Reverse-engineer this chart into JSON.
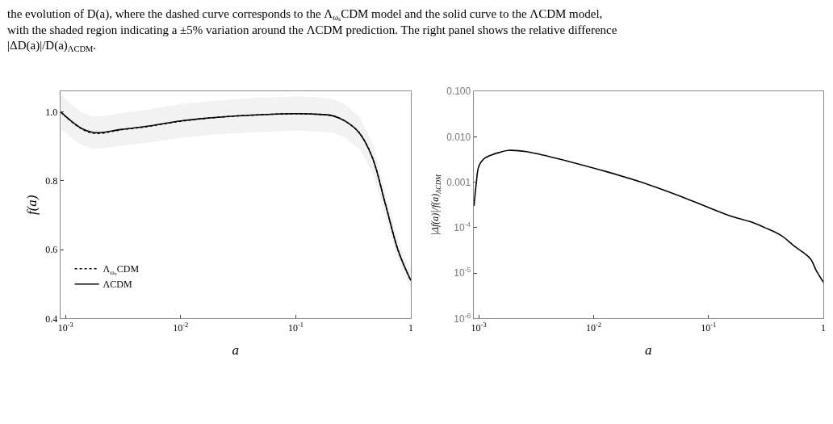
{
  "chart_data": [
    {
      "type": "line",
      "annotations": [
        "the evolution of D(a), where the dashed curve corresponds to the Λ$_{ωₛ}$CDM model and the solid curve to the ΛCDM model,\nwith the shaded region indicating a ±5% variation around the ΛCDM prediction. The right panel shows the relative difference\n|ΔD(a)|/D(a)$_{ΛCDM}$."
      ],
      "xlabel": "a",
      "ylabel": "f(a)",
      "log": "x",
      "xlim": [
        0.0009,
        1
      ],
      "xticks": [
        {
          "value": 0.001,
          "label": "10$^{-3}$"
        },
        {
          "value": 0.01,
          "label": "10$^{-2}$"
        },
        {
          "value": 0.1,
          "label": "10$^{-1}$"
        },
        1
      ],
      "ylim": [
        0.4,
        1.06
      ],
      "yticks": [
        0.4,
        0.6,
        0.8,
        {
          "value": 1.0,
          "label": "1.0"
        }
      ],
      "x": [
        0.00091,
        0.001,
        0.0012,
        0.0014,
        0.0017,
        0.002,
        0.003,
        0.005,
        0.01,
        0.02,
        0.05,
        0.1,
        0.16,
        0.21,
        0.27,
        0.355,
        0.46,
        0.6,
        0.78,
        1
      ],
      "series": [
        {
          "name": "ΛCDM",
          "color": "#000000",
          "line_style": "solid",
          "values": [
            1.0,
            0.988,
            0.966,
            0.951,
            0.941,
            0.94,
            0.949,
            0.958,
            0.974,
            0.984,
            0.992,
            0.995,
            0.993,
            0.989,
            0.973,
            0.94,
            0.87,
            0.733,
            0.595,
            0.51
          ],
          "lower": [
            0.95,
            0.939,
            0.918,
            0.903,
            0.894,
            0.893,
            0.902,
            0.91,
            0.925,
            0.935,
            0.942,
            0.945,
            0.943,
            0.94,
            0.924,
            0.893,
            0.827,
            0.696,
            0.565,
            0.485
          ],
          "upper": [
            1.05,
            1.037,
            1.014,
            0.999,
            0.988,
            0.987,
            0.996,
            1.006,
            1.023,
            1.033,
            1.042,
            1.045,
            1.043,
            1.038,
            1.022,
            0.987,
            0.914,
            0.77,
            0.625,
            0.536
          ]
        },
        {
          "name": "Λ$_{ωₛ}$CDM",
          "color": "#000000",
          "line_style": "dotted",
          "values": [
            1.0,
            0.987,
            0.965,
            0.95,
            0.939,
            0.938,
            0.948,
            0.957,
            0.973,
            0.984,
            0.992,
            0.995,
            0.993,
            0.989,
            0.973,
            0.94,
            0.87,
            0.733,
            0.595,
            0.51
          ]
        }
      ],
      "legend": "bottom left",
      "grid": false,
      "marker": "none"
    },
    {
      "type": "line",
      "xlabel": "a",
      "ylabel": "|Δf(a)|/f(a)$_{ΛCDM}$",
      "log": "xy",
      "xlim": [
        0.0009,
        1
      ],
      "xticks": [
        {
          "value": 0.001,
          "label": "10$^{-3}$"
        },
        {
          "value": 0.01,
          "label": "10$^{-2}$"
        },
        {
          "value": 0.1,
          "label": "10$^{-1}$"
        },
        1
      ],
      "ylim": [
        1e-06,
        0.1
      ],
      "yticks": [
        {
          "value": 1e-06,
          "label": "10$^{-6}$"
        },
        {
          "value": 1e-05,
          "label": "10$^{-5}$"
        },
        {
          "value": 0.0001,
          "label": "10$^{-4}$"
        },
        0.001,
        {
          "value": 0.01,
          "label": "0.010"
        },
        {
          "value": 0.1,
          "label": "0.100"
        }
      ],
      "x": [
        0.00091,
        0.00095,
        0.001,
        0.0011,
        0.0013,
        0.0015,
        0.0018,
        0.0026,
        0.013,
        0.026,
        0.065,
        0.147,
        0.25,
        0.31,
        0.43,
        0.56,
        0.7,
        0.78,
        0.865,
        1
      ],
      "series": [
        {
          "color": "#000000",
          "line_style": "solid",
          "values": [
            0.0003,
            0.0009,
            0.0022,
            0.0032,
            0.004,
            0.0045,
            0.005,
            0.0047,
            0.0017,
            0.001,
            0.00043,
            0.00019,
            0.000126,
            0.0001,
            6.7e-05,
            3.9e-05,
            2.6e-05,
            2e-05,
            1.15e-05,
            6.3e-06
          ]
        }
      ],
      "legend": false,
      "grid": false,
      "marker": "none"
    }
  ]
}
